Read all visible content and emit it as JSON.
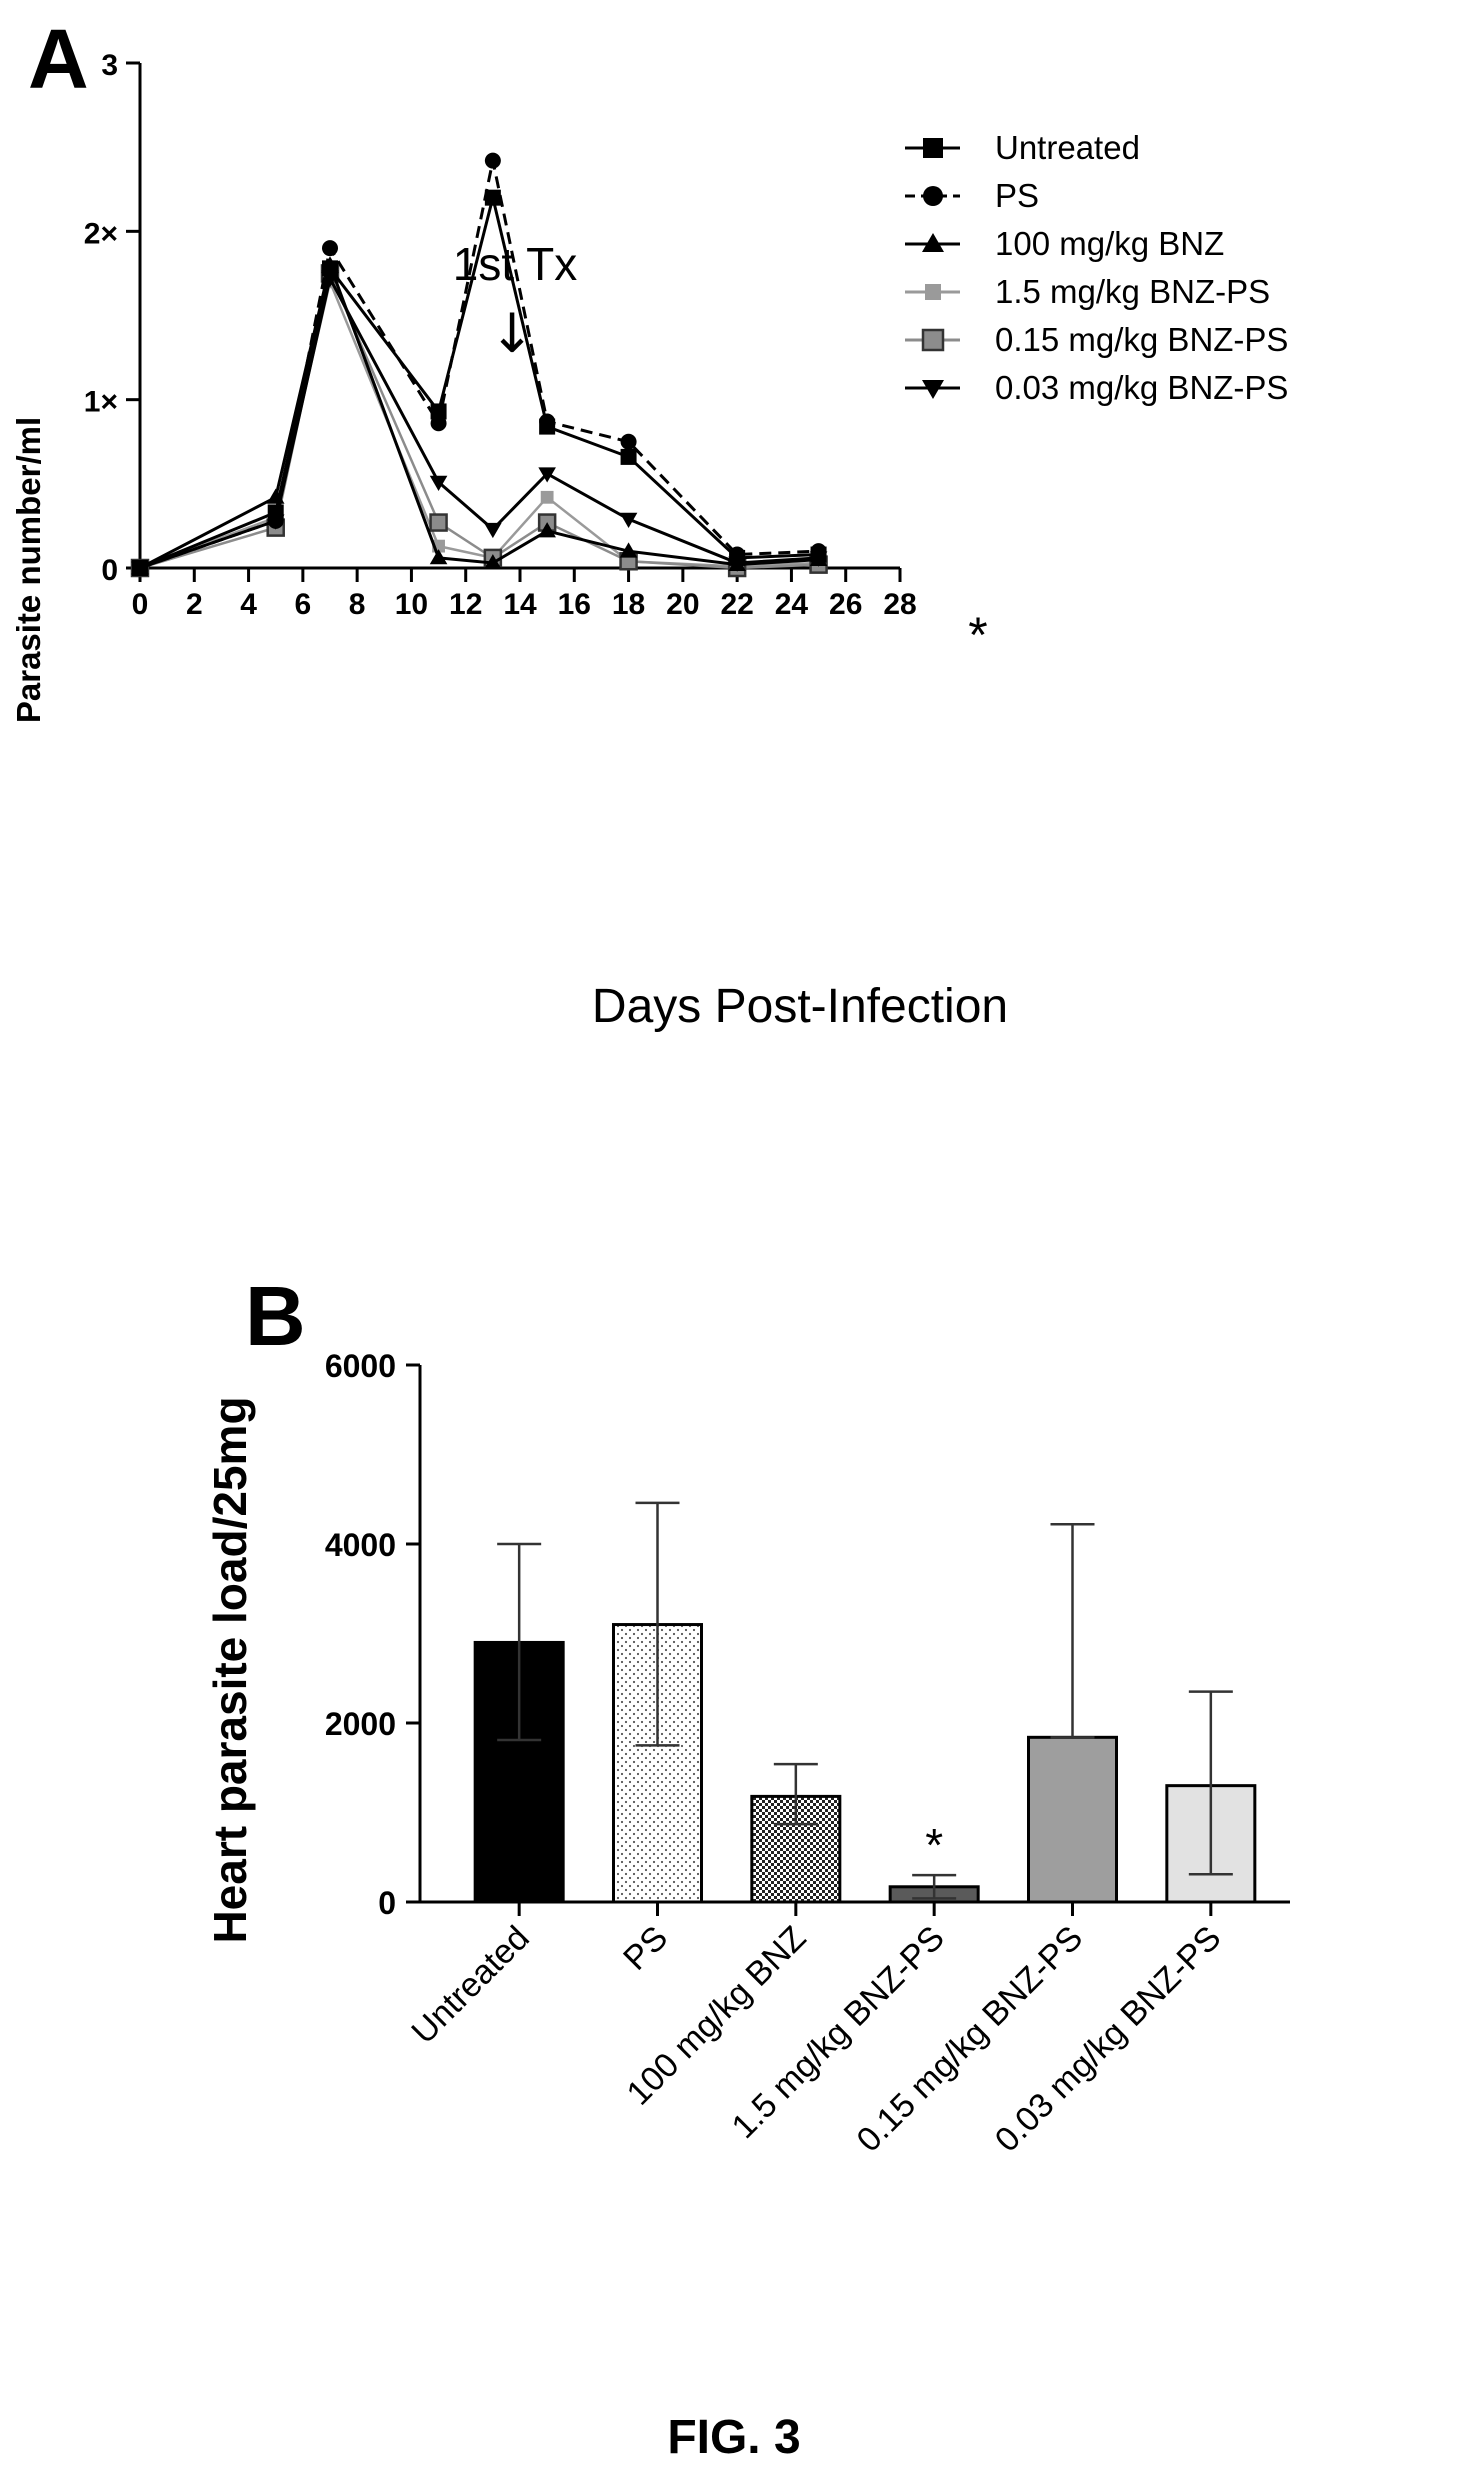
{
  "figure_caption": "FIG. 3",
  "chart_data": [
    {
      "panel": "A",
      "type": "line",
      "ylabel": "Parasite number/ml",
      "xlabel": "Days Post-Infection",
      "y_tick_labels": [
        "0",
        "1×",
        "2×",
        "3"
      ],
      "x_ticks": [
        0,
        2,
        4,
        6,
        8,
        10,
        12,
        14,
        16,
        18,
        20,
        22,
        24,
        26,
        28
      ],
      "xlim": [
        0,
        28
      ],
      "ylim": [
        0,
        3
      ],
      "legend_position": "top-right",
      "annotation_text": "1st Tx",
      "annotation_arrow": "↓",
      "annotation_x": 7,
      "significance_marker": "*",
      "significance_x": 18,
      "series": [
        {
          "name": "Untreated",
          "marker": "square",
          "color": "#000000",
          "dash": "solid",
          "x": [
            0,
            5,
            7,
            11,
            13,
            15,
            18,
            22,
            25
          ],
          "y": [
            0,
            0.33,
            1.78,
            0.93,
            2.2,
            0.84,
            0.66,
            0.06,
            0.08
          ]
        },
        {
          "name": "PS",
          "marker": "circle",
          "color": "#000000",
          "dash": "dashed",
          "x": [
            0,
            5,
            7,
            11,
            13,
            15,
            18,
            22,
            25
          ],
          "y": [
            0,
            0.28,
            1.9,
            0.86,
            2.42,
            0.87,
            0.75,
            0.08,
            0.1
          ]
        },
        {
          "name": "100 mg/kg BNZ",
          "marker": "triangle-up",
          "color": "#000000",
          "dash": "solid",
          "x": [
            0,
            5,
            7,
            11,
            13,
            15,
            18,
            22,
            25
          ],
          "y": [
            0,
            0.42,
            1.8,
            0.06,
            0.03,
            0.22,
            0.1,
            0.02,
            0.05
          ]
        },
        {
          "name": "1.5 mg/kg BNZ-PS",
          "marker": "square-small",
          "color": "#9a9a9a",
          "dash": "solid",
          "x": [
            0,
            5,
            7,
            11,
            13,
            15,
            18,
            22,
            25
          ],
          "y": [
            0,
            0.3,
            1.7,
            0.13,
            0.06,
            0.42,
            0.04,
            0.01,
            0.03
          ]
        },
        {
          "name": "0.15 mg/kg BNZ-PS",
          "marker": "square-outline",
          "color": "#8c8c8c",
          "dash": "solid",
          "x": [
            0,
            5,
            7,
            11,
            13,
            15,
            18,
            22,
            25
          ],
          "y": [
            0,
            0.24,
            1.75,
            0.27,
            0.06,
            0.27,
            0.04,
            0.0,
            0.02
          ]
        },
        {
          "name": "0.03 mg/kg BNZ-PS",
          "marker": "triangle-down",
          "color": "#000000",
          "dash": "solid",
          "x": [
            0,
            5,
            7,
            11,
            13,
            15,
            18,
            22,
            25
          ],
          "y": [
            0,
            0.28,
            1.72,
            0.51,
            0.23,
            0.56,
            0.29,
            0.03,
            0.06
          ]
        }
      ]
    },
    {
      "panel": "B",
      "type": "bar",
      "ylabel": "Heart parasite load/25mg",
      "ylim": [
        0,
        6000
      ],
      "y_ticks": [
        0,
        2000,
        4000,
        6000
      ],
      "categories": [
        "Untreated",
        "PS",
        "100 mg/kg BNZ",
        "1.5 mg/kg BNZ-PS",
        "0.15 mg/kg BNZ-PS",
        "0.03 mg/kg BNZ-PS"
      ],
      "values": [
        2900,
        3100,
        1180,
        170,
        1840,
        1300
      ],
      "error_upper": [
        4000,
        4460,
        1540,
        300,
        4220,
        2350
      ],
      "error_lower": [
        1810,
        1750,
        870,
        40,
        1840,
        310
      ],
      "fills": [
        "solid-black",
        "dots",
        "checker",
        "dark-gray",
        "gray",
        "light-gray"
      ],
      "significance_marker": "*",
      "significance_index": 3
    }
  ]
}
